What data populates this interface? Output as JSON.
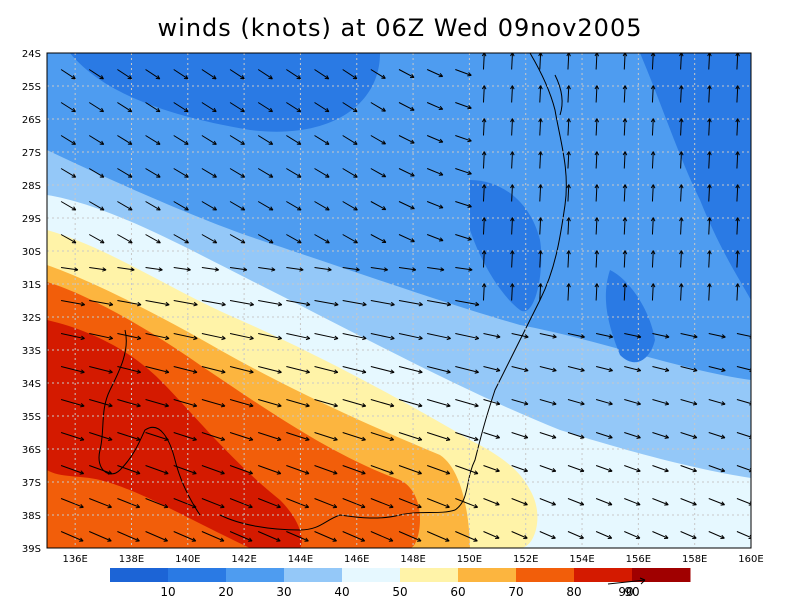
{
  "title": "winds (knots) at 06Z Wed 09nov2005",
  "chart_data": {
    "type": "heatmap",
    "variable": "wind speed",
    "units": "knots",
    "title": "winds (knots) at 06Z Wed 09nov2005",
    "lon_range": [
      135,
      160
    ],
    "lat_range": [
      -39,
      -24
    ],
    "lat_ticks": [
      "24S",
      "25S",
      "26S",
      "27S",
      "28S",
      "29S",
      "30S",
      "31S",
      "32S",
      "33S",
      "34S",
      "35S",
      "36S",
      "37S",
      "38S",
      "39S"
    ],
    "lon_ticks": [
      "136E",
      "138E",
      "140E",
      "142E",
      "144E",
      "146E",
      "148E",
      "150E",
      "152E",
      "154E",
      "156E",
      "158E",
      "160E"
    ],
    "grid": true,
    "contour_levels": [
      10,
      20,
      30,
      40,
      50,
      60,
      70,
      80,
      90
    ],
    "colorbar_colors": [
      "#1c64d6",
      "#2a7ae4",
      "#4e9cf0",
      "#94c8f8",
      "#e6f8ff",
      "#fff3a8",
      "#fcb53f",
      "#f25e0a",
      "#d41a00",
      "#a00000"
    ],
    "colorbar_labels": [
      "10",
      "20",
      "30",
      "40",
      "50",
      "60",
      "70",
      "80",
      "90"
    ],
    "vector_reference_label": "90",
    "summary_values": {
      "max_wind_region": "southwest (around 36S, 136E-140E)",
      "max_wind_knots": 85,
      "min_wind_region": "northwest (around 25S, 142E-144E)",
      "min_wind_knots": 10,
      "dominant_flow": "northwesterly in south, southerly in north"
    }
  }
}
